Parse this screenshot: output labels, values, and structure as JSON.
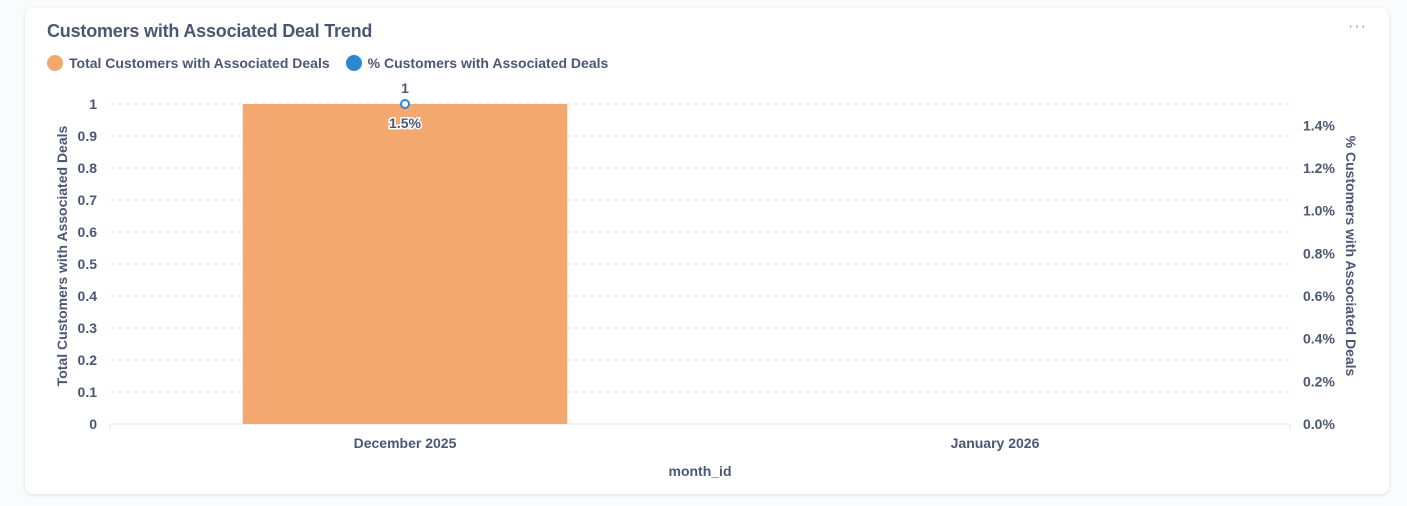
{
  "card": {
    "title": "Customers with Associated Deal Trend",
    "more_icon": "more-dots-icon",
    "more_label": "···"
  },
  "colors": {
    "bar": "#f2a86f",
    "line": "#2d86d4",
    "grid": "#dfe3e8",
    "text": "#4c5773"
  },
  "chart_data": {
    "type": "bar",
    "x_axis_label": "month_id",
    "categories": [
      "December 2025",
      "January 2026"
    ],
    "series": [
      {
        "name": "Total Customers with Associated Deals",
        "type": "bar",
        "axis": "left",
        "values": [
          1,
          null
        ],
        "data_labels": [
          "1",
          null
        ]
      },
      {
        "name": "% Customers with Associated Deals",
        "type": "line",
        "axis": "right",
        "values": [
          1.5,
          null
        ],
        "data_labels": [
          "1.5%",
          null
        ]
      }
    ],
    "y_left": {
      "label": "Total Customers with Associated Deals",
      "ylim": [
        0,
        1
      ],
      "ticks": [
        "0",
        "0.1",
        "0.2",
        "0.3",
        "0.4",
        "0.5",
        "0.6",
        "0.7",
        "0.8",
        "0.9",
        "1"
      ]
    },
    "y_right": {
      "label": "% Customers with Associated Deals",
      "ylim": [
        0,
        1.5
      ],
      "ticks": [
        "0.0%",
        "0.2%",
        "0.4%",
        "0.6%",
        "0.8%",
        "1.0%",
        "1.2%",
        "1.4%"
      ]
    },
    "grid": true,
    "legend_position": "top-left"
  }
}
